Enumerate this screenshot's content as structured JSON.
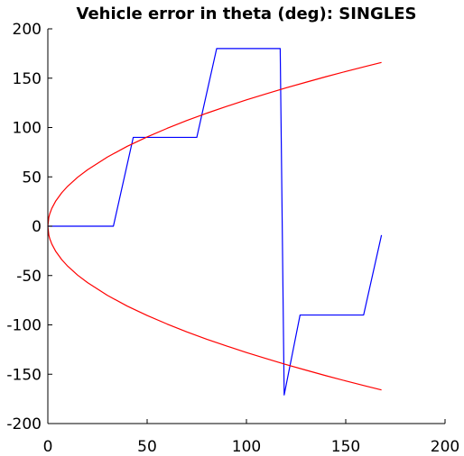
{
  "chart_data": {
    "type": "line",
    "title": "Vehicle error in theta (deg): SINGLES",
    "xlabel": "",
    "ylabel": "",
    "xlim": [
      0,
      200
    ],
    "ylim": [
      -200,
      200
    ],
    "xticks": [
      0,
      50,
      100,
      150,
      200
    ],
    "yticks": [
      -200,
      -150,
      -100,
      -50,
      0,
      50,
      100,
      150,
      200
    ],
    "xtick_labels": [
      "0",
      "50",
      "100",
      "150",
      "200"
    ],
    "ytick_labels": [
      "-200",
      "-150",
      "-100",
      "-50",
      "0",
      "50",
      "100",
      "150",
      "200"
    ],
    "grid": false,
    "legend": "none",
    "series": [
      {
        "color": "#0000ff",
        "style": "solid",
        "x": [
          0,
          33,
          43,
          75,
          85,
          117,
          119,
          127,
          159,
          168
        ],
        "y": [
          0,
          0,
          90,
          90,
          180,
          180,
          -171,
          -90,
          -90,
          -9
        ]
      },
      {
        "color": "#ff0000",
        "style": "solid",
        "function": "sqrt",
        "coefficient": 12.8,
        "x": [
          0,
          0.5,
          1,
          2,
          4,
          7,
          10,
          15,
          20,
          30,
          40,
          50,
          60,
          70,
          80,
          90,
          100,
          110,
          120,
          130,
          140,
          150,
          160,
          168
        ],
        "y": [
          0,
          9.1,
          12.8,
          18.1,
          25.6,
          33.9,
          40.5,
          49.6,
          57.2,
          70.1,
          81.0,
          90.5,
          99.1,
          107.1,
          114.5,
          121.4,
          128.0,
          134.2,
          140.2,
          145.9,
          151.5,
          156.8,
          161.9,
          165.9
        ]
      },
      {
        "color": "#ff0000",
        "style": "solid",
        "function": "-sqrt",
        "coefficient": 12.8,
        "x": [
          0,
          0.5,
          1,
          2,
          4,
          7,
          10,
          15,
          20,
          30,
          40,
          50,
          60,
          70,
          80,
          90,
          100,
          110,
          120,
          130,
          140,
          150,
          160,
          168
        ],
        "y": [
          0,
          -9.1,
          -12.8,
          -18.1,
          -25.6,
          -33.9,
          -40.5,
          -49.6,
          -57.2,
          -70.1,
          -81.0,
          -90.5,
          -99.1,
          -107.1,
          -114.5,
          -121.4,
          -128.0,
          -134.2,
          -140.2,
          -145.9,
          -151.5,
          -156.8,
          -161.9,
          -165.9
        ]
      }
    ]
  }
}
